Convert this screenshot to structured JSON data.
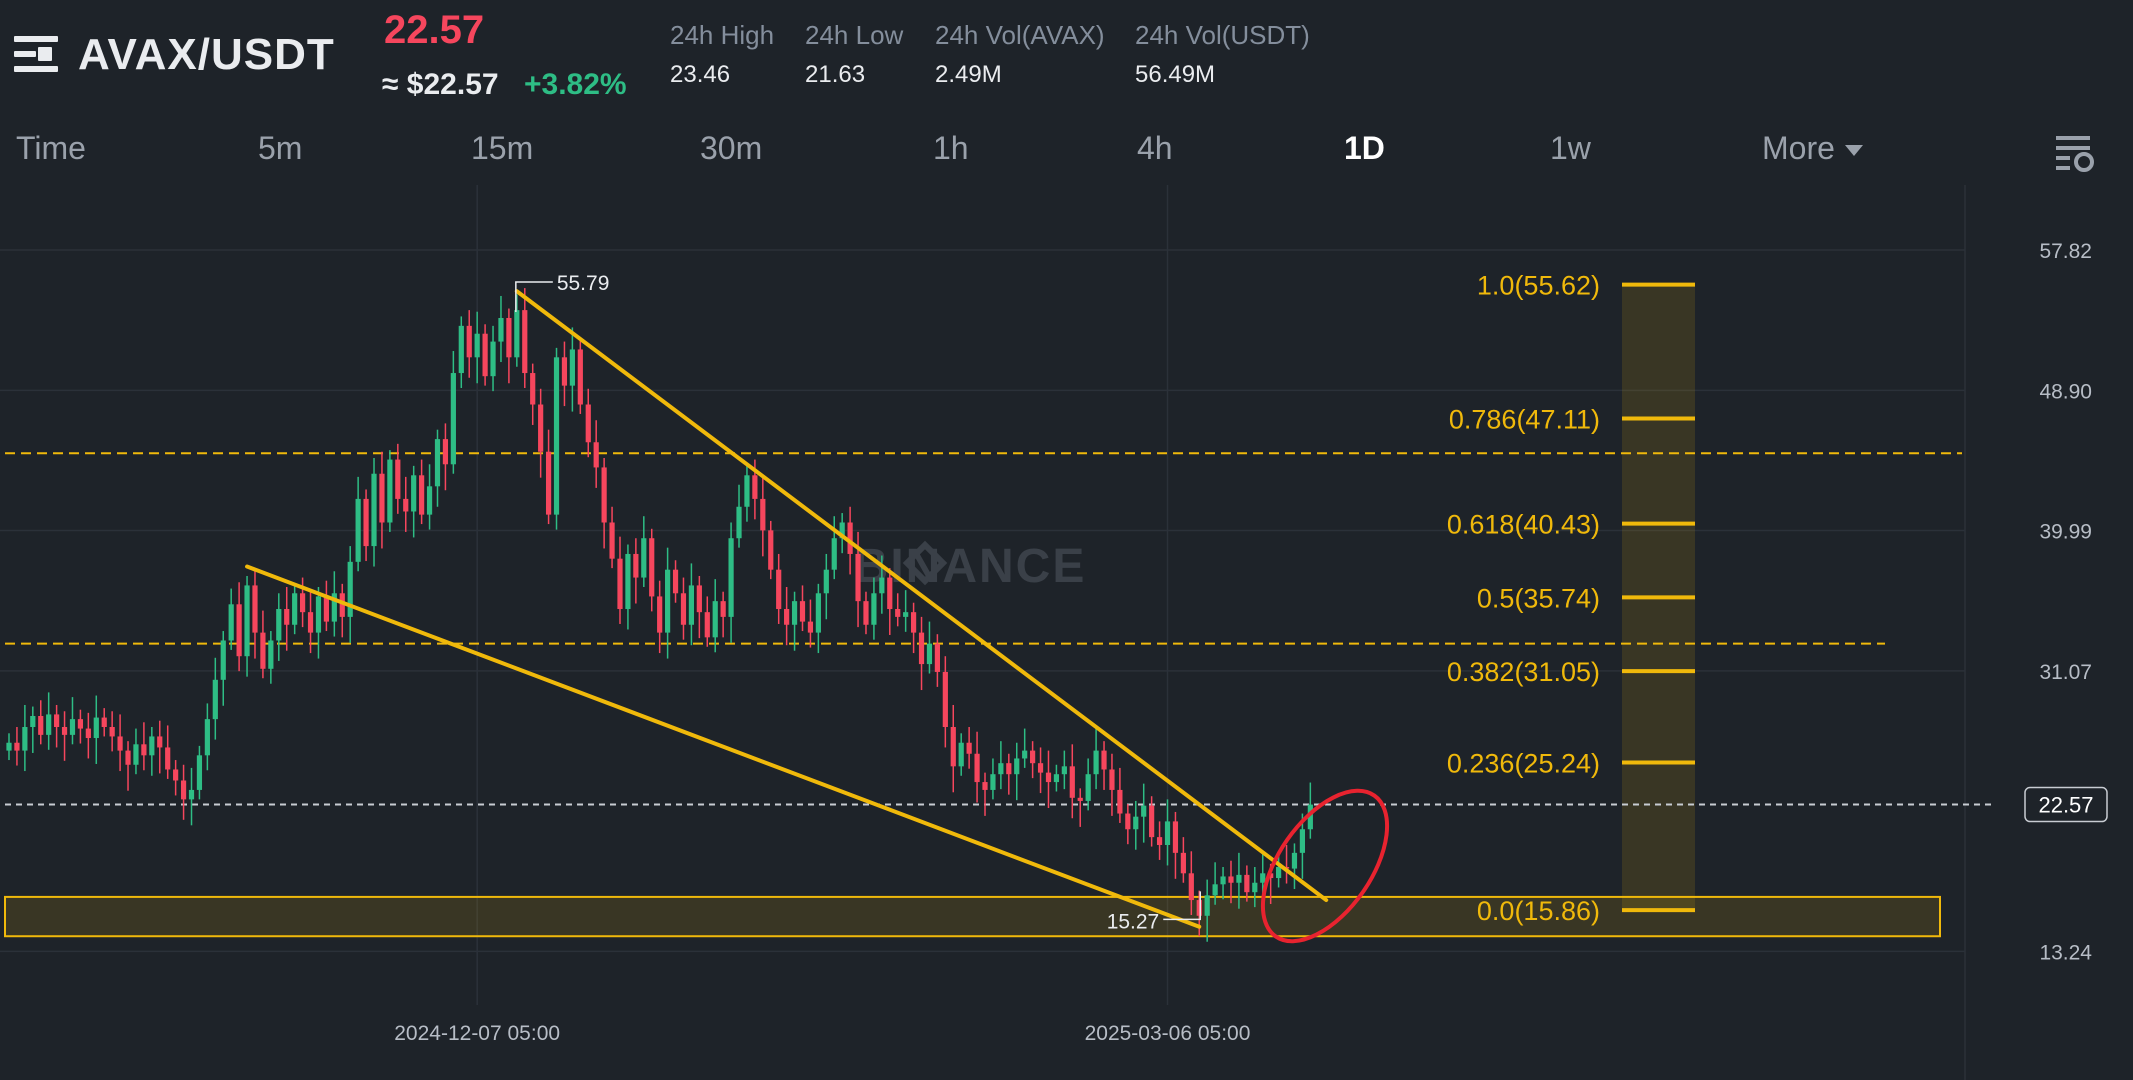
{
  "header": {
    "pair": "AVAX/USDT",
    "price": "22.57",
    "usd_price": "≈ $22.57",
    "change": "+3.82%",
    "stats": [
      {
        "label": "24h High",
        "value": "23.46"
      },
      {
        "label": "24h Low",
        "value": "21.63"
      },
      {
        "label": "24h Vol(AVAX)",
        "value": "2.49M"
      },
      {
        "label": "24h Vol(USDT)",
        "value": "56.49M"
      }
    ]
  },
  "tabs": [
    "Time",
    "5m",
    "15m",
    "30m",
    "1h",
    "4h",
    "1D",
    "1w",
    "More"
  ],
  "active_tab": "1D",
  "colors": {
    "background": "#1e2329",
    "up": "#2ebd85",
    "down": "#f6465d",
    "fib": "#f0b90b",
    "annotation_circle": "#e8232f"
  },
  "chart_data": {
    "type": "candlestick",
    "watermark": "BINANCE",
    "y_axis_ticks": [
      57.82,
      48.9,
      39.99,
      31.07,
      13.24
    ],
    "ylim": [
      11.1,
      61.0
    ],
    "x_tick_labels": [
      {
        "label": "2024-12-07 05:00",
        "index": 59
      },
      {
        "label": "2025-03-06 05:00",
        "index": 146
      }
    ],
    "last_price": 22.57,
    "swing_high": {
      "label": "55.79",
      "value": 55.79,
      "index": 64
    },
    "swing_low": {
      "label": "15.27",
      "value": 15.27,
      "index": 150
    },
    "fib_levels": [
      {
        "ratio": 1.0,
        "value": 55.62,
        "label": "1.0(55.62)"
      },
      {
        "ratio": 0.786,
        "value": 47.11,
        "label": "0.786(47.11)"
      },
      {
        "ratio": 0.618,
        "value": 40.43,
        "label": "0.618(40.43)"
      },
      {
        "ratio": 0.5,
        "value": 35.74,
        "label": "0.5(35.74)"
      },
      {
        "ratio": 0.382,
        "value": 31.05,
        "label": "0.382(31.05)"
      },
      {
        "ratio": 0.236,
        "value": 25.24,
        "label": "0.236(25.24)"
      },
      {
        "ratio": 0.0,
        "value": 15.86,
        "label": "0.0(15.86)"
      }
    ],
    "horizontal_lines": [
      {
        "value": 44.9,
        "style": "dashed"
      },
      {
        "value": 32.8,
        "style": "dashed"
      },
      {
        "value": 22.57,
        "style": "dashed"
      }
    ],
    "support_zone": [
      14.2,
      16.7
    ],
    "trendlines": [
      {
        "from": {
          "index": 64,
          "value": 55.2
        },
        "to": {
          "index": 166,
          "value": 16.5
        }
      },
      {
        "from": {
          "index": 30,
          "value": 37.7
        },
        "to": {
          "index": 150,
          "value": 14.8
        }
      }
    ],
    "closes": [
      26.5,
      26.0,
      27.5,
      28.2,
      27.0,
      28.3,
      27.5,
      27.0,
      28.0,
      27.4,
      26.8,
      28.1,
      27.5,
      26.9,
      26.0,
      25.1,
      26.4,
      25.7,
      26.9,
      26.2,
      24.8,
      24.1,
      22.9,
      23.5,
      25.7,
      28.0,
      30.5,
      33.0,
      35.3,
      32.0,
      36.5,
      33.5,
      31.2,
      33.0,
      35.0,
      34.0,
      36.0,
      34.8,
      33.5,
      35.8,
      34.2,
      36.0,
      34.5,
      38.0,
      42.0,
      39.0,
      43.6,
      40.5,
      44.5,
      42.0,
      41.2,
      43.5,
      41.0,
      42.8,
      45.8,
      44.2,
      50.0,
      53.0,
      51.0,
      52.5,
      49.8,
      52.0,
      53.5,
      51.0,
      54.0,
      50.0,
      48.0,
      45.0,
      41.0,
      51.0,
      49.2,
      51.5,
      48.0,
      45.6,
      44.0,
      40.5,
      38.2,
      35.0,
      38.5,
      37.0,
      39.5,
      35.8,
      33.5,
      37.5,
      36.0,
      34.0,
      36.5,
      34.8,
      33.2,
      35.5,
      34.5,
      39.5,
      41.5,
      43.5,
      42.0,
      40.0,
      37.5,
      35.0,
      34.0,
      35.5,
      34.2,
      33.5,
      36.0,
      37.5,
      39.5,
      40.5,
      38.5,
      35.5,
      34.0,
      36.0,
      37.0,
      35.0,
      34.5,
      34.8,
      33.5,
      31.5,
      32.8,
      31.0,
      27.5,
      25.0,
      26.5,
      25.8,
      24.0,
      23.5,
      24.5,
      25.2,
      24.5,
      25.5,
      26.0,
      25.2,
      24.6,
      24.0,
      24.5,
      25.0,
      23.0,
      22.8,
      24.5,
      26.0,
      24.8,
      23.5,
      22.0,
      21.0,
      21.8,
      22.5,
      20.5,
      20.0,
      21.5,
      19.5,
      18.2,
      16.5,
      15.5,
      16.8,
      17.5,
      18.0,
      17.6,
      18.1,
      17.0,
      17.6,
      18.2,
      17.9,
      18.6,
      18.5,
      19.5,
      21.0,
      22.57
    ]
  }
}
